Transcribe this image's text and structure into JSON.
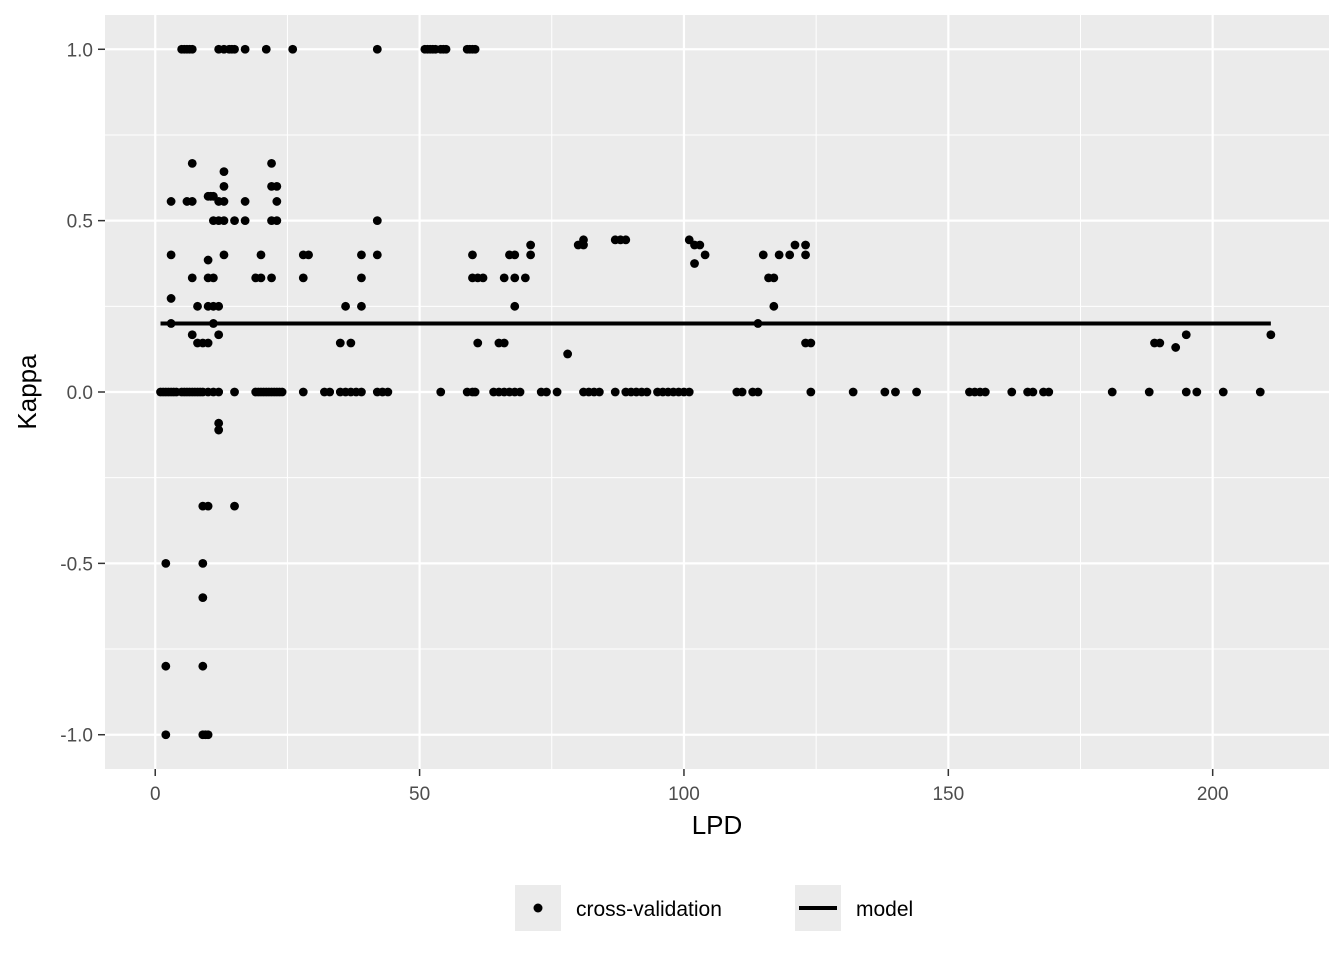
{
  "chart_data": {
    "type": "scatter",
    "xlabel": "LPD",
    "ylabel": "Kappa",
    "xlim": [
      -9.5,
      222
    ],
    "ylim": [
      -1.1,
      1.1
    ],
    "x_ticks": [
      0,
      50,
      100,
      150,
      200
    ],
    "x_tick_labels": [
      "0",
      "50",
      "100",
      "150",
      "200"
    ],
    "y_ticks": [
      -1.0,
      -0.5,
      0.0,
      0.5,
      1.0
    ],
    "y_tick_labels": [
      "-1.0",
      "-0.5",
      "0.0",
      "0.5",
      "1.0"
    ],
    "grid": true,
    "background": "#ebebeb",
    "legend": {
      "position": "bottom",
      "entries": [
        {
          "label": "cross-validation",
          "kind": "point"
        },
        {
          "label": "model",
          "kind": "line"
        }
      ]
    },
    "series": [
      {
        "name": "cross-validation",
        "kind": "points",
        "color": "#000000",
        "points": [
          [
            1,
            0
          ],
          [
            1.5,
            0
          ],
          [
            2,
            0
          ],
          [
            2.5,
            0
          ],
          [
            3,
            0
          ],
          [
            3.5,
            0
          ],
          [
            4,
            0
          ],
          [
            2,
            -0.5
          ],
          [
            2,
            -0.8
          ],
          [
            2,
            -1.0
          ],
          [
            3,
            0.556
          ],
          [
            3,
            0.4
          ],
          [
            3,
            0.273
          ],
          [
            3,
            0.2
          ],
          [
            5,
            1.0
          ],
          [
            5.5,
            1.0
          ],
          [
            6,
            1.0
          ],
          [
            6.5,
            1.0
          ],
          [
            7,
            1.0
          ],
          [
            6,
            0.556
          ],
          [
            7,
            0.556
          ],
          [
            7,
            0.667
          ],
          [
            7,
            0.333
          ],
          [
            7,
            0.167
          ],
          [
            5,
            0
          ],
          [
            5.5,
            0
          ],
          [
            6,
            0
          ],
          [
            6.5,
            0
          ],
          [
            7,
            0
          ],
          [
            7.5,
            0
          ],
          [
            8,
            0
          ],
          [
            8.5,
            0
          ],
          [
            8,
            0.143
          ],
          [
            8,
            0.25
          ],
          [
            9,
            0.143
          ],
          [
            9,
            -0.333
          ],
          [
            9,
            -0.5
          ],
          [
            9,
            -0.6
          ],
          [
            9,
            -0.8
          ],
          [
            9,
            -1.0
          ],
          [
            9,
            0
          ],
          [
            9.5,
            -1.0
          ],
          [
            10,
            -1.0
          ],
          [
            10,
            0.571
          ],
          [
            10,
            0.385
          ],
          [
            10,
            0.333
          ],
          [
            10,
            0.25
          ],
          [
            10,
            0.143
          ],
          [
            10,
            0
          ],
          [
            10,
            -0.333
          ],
          [
            10.5,
            0.571
          ],
          [
            11,
            0.571
          ],
          [
            11,
            0.5
          ],
          [
            11,
            0.333
          ],
          [
            11,
            0.25
          ],
          [
            11,
            0.2
          ],
          [
            11,
            0
          ],
          [
            12,
            1.0
          ],
          [
            12,
            0.556
          ],
          [
            12,
            0.5
          ],
          [
            12,
            0.25
          ],
          [
            12,
            0.167
          ],
          [
            12,
            0
          ],
          [
            12,
            -0.091
          ],
          [
            12,
            -0.111
          ],
          [
            13,
            0.643
          ],
          [
            13,
            0.6
          ],
          [
            13,
            0.556
          ],
          [
            13,
            0.5
          ],
          [
            13,
            0.4
          ],
          [
            13,
            1.0
          ],
          [
            14,
            1.0
          ],
          [
            14.5,
            1.0
          ],
          [
            15,
            1.0
          ],
          [
            15,
            0.5
          ],
          [
            15,
            0
          ],
          [
            15,
            -0.333
          ],
          [
            17,
            1.0
          ],
          [
            17,
            0.556
          ],
          [
            17,
            0.5
          ],
          [
            19,
            0.333
          ],
          [
            19,
            0
          ],
          [
            19.5,
            0
          ],
          [
            20,
            0.4
          ],
          [
            20,
            0.333
          ],
          [
            20,
            0
          ],
          [
            20.5,
            0
          ],
          [
            21,
            1.0
          ],
          [
            21,
            0
          ],
          [
            21.5,
            0
          ],
          [
            22,
            0.667
          ],
          [
            22,
            0.6
          ],
          [
            22,
            0.5
          ],
          [
            22,
            0.333
          ],
          [
            22,
            0
          ],
          [
            22.5,
            0
          ],
          [
            23,
            0.6
          ],
          [
            23,
            0.556
          ],
          [
            23,
            0.5
          ],
          [
            23,
            0
          ],
          [
            23.5,
            0
          ],
          [
            24,
            0
          ],
          [
            26,
            1.0
          ],
          [
            28,
            0.4
          ],
          [
            28,
            0.333
          ],
          [
            28,
            0
          ],
          [
            29,
            0.4
          ],
          [
            32,
            0
          ],
          [
            33,
            0
          ],
          [
            35,
            0.143
          ],
          [
            35,
            0
          ],
          [
            36,
            0.25
          ],
          [
            36,
            0
          ],
          [
            37,
            0.143
          ],
          [
            37,
            0
          ],
          [
            38,
            0
          ],
          [
            39,
            0.4
          ],
          [
            39,
            0.333
          ],
          [
            39,
            0.25
          ],
          [
            39,
            0
          ],
          [
            42,
            1.0
          ],
          [
            42,
            0.5
          ],
          [
            42,
            0.4
          ],
          [
            42,
            0
          ],
          [
            43,
            0
          ],
          [
            44,
            0
          ],
          [
            51,
            1.0
          ],
          [
            51.5,
            1.0
          ],
          [
            52,
            1.0
          ],
          [
            52.5,
            1.0
          ],
          [
            53,
            1.0
          ],
          [
            54,
            1.0
          ],
          [
            54.5,
            1.0
          ],
          [
            55,
            1.0
          ],
          [
            54,
            0
          ],
          [
            59,
            1.0
          ],
          [
            59.5,
            1.0
          ],
          [
            60,
            1.0
          ],
          [
            60.5,
            1.0
          ],
          [
            59,
            0
          ],
          [
            60,
            0
          ],
          [
            60,
            0.4
          ],
          [
            60,
            0.333
          ],
          [
            60.5,
            0
          ],
          [
            61,
            0.333
          ],
          [
            61,
            0.143
          ],
          [
            62,
            0.333
          ],
          [
            64,
            0
          ],
          [
            65,
            0
          ],
          [
            65,
            0.143
          ],
          [
            66,
            0.143
          ],
          [
            66,
            0.333
          ],
          [
            66,
            0
          ],
          [
            67,
            0.4
          ],
          [
            67,
            0
          ],
          [
            68,
            0.4
          ],
          [
            68,
            0.333
          ],
          [
            68,
            0.25
          ],
          [
            68,
            0
          ],
          [
            69,
            0
          ],
          [
            70,
            0.333
          ],
          [
            71,
            0.429
          ],
          [
            71,
            0.4
          ],
          [
            73,
            0
          ],
          [
            74,
            0
          ],
          [
            76,
            0
          ],
          [
            78,
            0.111
          ],
          [
            80,
            0.429
          ],
          [
            81,
            0.429
          ],
          [
            81,
            0.444
          ],
          [
            81,
            0
          ],
          [
            82,
            0
          ],
          [
            83,
            0
          ],
          [
            84,
            0
          ],
          [
            87,
            0.444
          ],
          [
            87,
            0
          ],
          [
            88,
            0.444
          ],
          [
            89,
            0.444
          ],
          [
            89,
            0
          ],
          [
            90,
            0
          ],
          [
            91,
            0
          ],
          [
            92,
            0
          ],
          [
            93,
            0
          ],
          [
            95,
            0
          ],
          [
            96,
            0
          ],
          [
            97,
            0
          ],
          [
            98,
            0
          ],
          [
            99,
            0
          ],
          [
            100,
            0
          ],
          [
            101,
            0
          ],
          [
            101,
            0.444
          ],
          [
            102,
            0.429
          ],
          [
            102,
            0.375
          ],
          [
            103,
            0.429
          ],
          [
            104,
            0.4
          ],
          [
            110,
            0
          ],
          [
            111,
            0
          ],
          [
            113,
            0
          ],
          [
            114,
            0
          ],
          [
            114,
            0.2
          ],
          [
            115,
            0.4
          ],
          [
            116,
            0.333
          ],
          [
            117,
            0.333
          ],
          [
            117,
            0.25
          ],
          [
            118,
            0.4
          ],
          [
            120,
            0.4
          ],
          [
            121,
            0.429
          ],
          [
            123,
            0.429
          ],
          [
            123,
            0.4
          ],
          [
            123,
            0.143
          ],
          [
            124,
            0.143
          ],
          [
            124,
            0
          ],
          [
            132,
            0
          ],
          [
            138,
            0
          ],
          [
            140,
            0
          ],
          [
            144,
            0
          ],
          [
            154,
            0
          ],
          [
            155,
            0
          ],
          [
            156,
            0
          ],
          [
            157,
            0
          ],
          [
            162,
            0
          ],
          [
            165,
            0
          ],
          [
            166,
            0
          ],
          [
            168,
            0
          ],
          [
            169,
            0
          ],
          [
            181,
            0
          ],
          [
            188,
            0
          ],
          [
            189,
            0.143
          ],
          [
            190,
            0.143
          ],
          [
            193,
            0.13
          ],
          [
            195,
            0.167
          ],
          [
            195,
            0
          ],
          [
            197,
            0
          ],
          [
            202,
            0
          ],
          [
            209,
            0
          ],
          [
            211,
            0.167
          ]
        ]
      },
      {
        "name": "model",
        "kind": "line",
        "color": "#000000",
        "x": [
          1,
          211
        ],
        "y": [
          0.2,
          0.2
        ]
      }
    ]
  }
}
